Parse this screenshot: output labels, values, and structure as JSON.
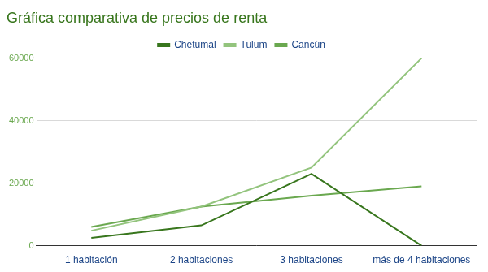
{
  "chart_data": {
    "type": "line",
    "title": "Gráfica comparativa de precios de renta",
    "categories": [
      "1 habitación",
      "2 habitaciones",
      "3 habitaciones",
      "más de 4 habitaciones"
    ],
    "series": [
      {
        "name": "Chetumal",
        "color": "#38761d",
        "values": [
          2500,
          6500,
          23000,
          0
        ]
      },
      {
        "name": "Tulum",
        "color": "#93c47d",
        "values": [
          4800,
          12500,
          25000,
          60000
        ]
      },
      {
        "name": "Cancún",
        "color": "#6aa84f",
        "values": [
          6000,
          12500,
          16000,
          19000
        ]
      }
    ],
    "ylim": [
      0,
      60000
    ],
    "yticks": [
      0,
      20000,
      40000,
      60000
    ],
    "grid": true,
    "legend": "top",
    "marker": "none"
  }
}
